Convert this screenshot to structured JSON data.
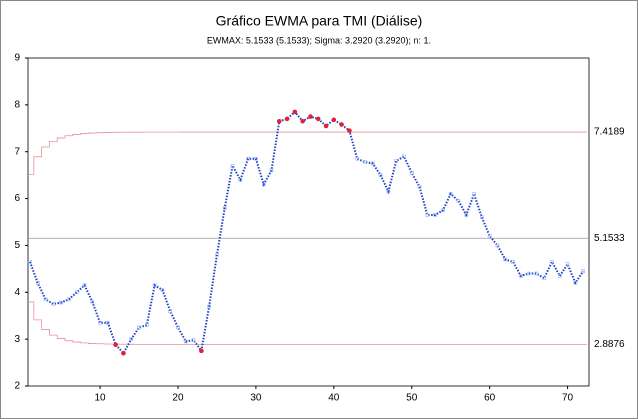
{
  "chart_data": {
    "type": "ewma",
    "title": "Gráfico EWMA para TMI (Diálise)",
    "subtitle": "EWMAX: 5.1533 (5.1533); Sigma: 3.2920 (3.2920); n: 1.",
    "x": [
      1,
      2,
      3,
      4,
      5,
      6,
      7,
      8,
      9,
      10,
      11,
      12,
      13,
      14,
      15,
      16,
      17,
      18,
      19,
      20,
      21,
      22,
      23,
      24,
      25,
      26,
      27,
      28,
      29,
      30,
      31,
      32,
      33,
      34,
      35,
      36,
      37,
      38,
      39,
      40,
      41,
      42,
      43,
      44,
      45,
      46,
      47,
      48,
      49,
      50,
      51,
      52,
      53,
      54,
      55,
      56,
      57,
      58,
      59,
      60,
      61,
      62,
      63,
      64,
      65,
      66,
      67,
      68,
      69,
      70,
      71,
      72
    ],
    "series": [
      {
        "name": "EWMA",
        "color": "#1f3fbf",
        "values": [
          4.65,
          4.2,
          3.85,
          3.75,
          3.78,
          3.85,
          4.0,
          4.15,
          3.8,
          3.35,
          3.35,
          2.88,
          2.7,
          3.0,
          3.25,
          3.3,
          4.15,
          4.05,
          3.6,
          3.25,
          2.95,
          2.98,
          2.75,
          3.7,
          4.8,
          5.8,
          6.7,
          6.4,
          6.85,
          6.85,
          6.3,
          6.6,
          7.65,
          7.7,
          7.85,
          7.65,
          7.75,
          7.7,
          7.55,
          7.68,
          7.58,
          7.45,
          6.85,
          6.78,
          6.75,
          6.5,
          6.15,
          6.8,
          6.9,
          6.55,
          6.25,
          5.65,
          5.65,
          5.75,
          6.1,
          5.95,
          5.65,
          6.1,
          5.6,
          5.2,
          5.0,
          4.7,
          4.65,
          4.35,
          4.4,
          4.4,
          4.3,
          4.65,
          4.35,
          4.6,
          4.2,
          4.45
        ]
      },
      {
        "name": "UCL",
        "color": "#e8909a",
        "values": [
          6.513,
          6.894,
          7.1,
          7.22,
          7.294,
          7.34,
          7.369,
          7.387,
          7.398,
          7.406,
          7.411,
          7.414,
          7.416,
          7.417,
          7.417,
          7.418,
          7.418,
          7.418,
          7.418,
          7.418,
          7.4189,
          7.4189,
          7.4189,
          7.4189,
          7.4189,
          7.4189,
          7.4189,
          7.4189,
          7.4189,
          7.4189,
          7.4189,
          7.4189,
          7.4189,
          7.4189,
          7.4189,
          7.4189,
          7.4189,
          7.4189,
          7.4189,
          7.4189,
          7.4189,
          7.4189,
          7.4189,
          7.4189,
          7.4189,
          7.4189,
          7.4189,
          7.4189,
          7.4189,
          7.4189,
          7.4189,
          7.4189,
          7.4189,
          7.4189,
          7.4189,
          7.4189,
          7.4189,
          7.4189,
          7.4189,
          7.4189,
          7.4189,
          7.4189,
          7.4189,
          7.4189,
          7.4189,
          7.4189,
          7.4189,
          7.4189,
          7.4189,
          7.4189,
          7.4189,
          7.4189
        ]
      },
      {
        "name": "LCL",
        "color": "#e8909a",
        "values": [
          3.794,
          3.412,
          3.207,
          3.086,
          3.012,
          2.967,
          2.938,
          2.92,
          2.908,
          2.901,
          2.896,
          2.893,
          2.891,
          2.89,
          2.889,
          2.888,
          2.888,
          2.888,
          2.888,
          2.888,
          2.8876,
          2.8876,
          2.8876,
          2.8876,
          2.8876,
          2.8876,
          2.8876,
          2.8876,
          2.8876,
          2.8876,
          2.8876,
          2.8876,
          2.8876,
          2.8876,
          2.8876,
          2.8876,
          2.8876,
          2.8876,
          2.8876,
          2.8876,
          2.8876,
          2.8876,
          2.8876,
          2.8876,
          2.8876,
          2.8876,
          2.8876,
          2.8876,
          2.8876,
          2.8876,
          2.8876,
          2.8876,
          2.8876,
          2.8876,
          2.8876,
          2.8876,
          2.8876,
          2.8876,
          2.8876,
          2.8876,
          2.8876,
          2.8876,
          2.8876,
          2.8876,
          2.8876,
          2.8876,
          2.8876,
          2.8876,
          2.8876,
          2.8876,
          2.8876,
          2.8876
        ]
      }
    ],
    "limits": {
      "ucl": 7.4189,
      "center": 5.1533,
      "lcl": 2.8876
    },
    "center_color": "#999999",
    "marker_color": "#8fb0ff",
    "alarm_color": "#e0203a",
    "xlim": [
      0.75,
      72.75
    ],
    "xticks": [
      10,
      20,
      30,
      40,
      50,
      60,
      70
    ],
    "ylim": [
      2,
      9
    ],
    "yticks": [
      2,
      3,
      4,
      5,
      6,
      7,
      8,
      9
    ]
  }
}
